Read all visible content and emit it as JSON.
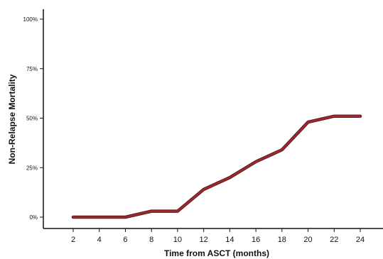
{
  "chart_data": {
    "type": "line",
    "xlabel": "Time from ASCT (months)",
    "ylabel": "Non-Relapse Mortality",
    "x": [
      2,
      4,
      6,
      8,
      10,
      12,
      14,
      16,
      18,
      20,
      22,
      24
    ],
    "x_ticks": [
      "2",
      "4",
      "6",
      "8",
      "10",
      "12",
      "14",
      "16",
      "18",
      "20",
      "22",
      "24"
    ],
    "y_ticks": [
      {
        "value": 0,
        "label": "0%"
      },
      {
        "value": 25,
        "label": "25%"
      },
      {
        "value": 50,
        "label": "50%"
      },
      {
        "value": 75,
        "label": "75%"
      },
      {
        "value": 100,
        "label": "100%"
      }
    ],
    "series": [
      {
        "values": [
          0,
          0,
          0,
          3,
          3,
          14,
          20,
          28,
          34,
          48,
          51,
          51
        ],
        "color": "#a0292f"
      }
    ],
    "xlim": [
      0,
      27
    ],
    "ylim": [
      0,
      105
    ],
    "grid": false,
    "legend": "none"
  }
}
